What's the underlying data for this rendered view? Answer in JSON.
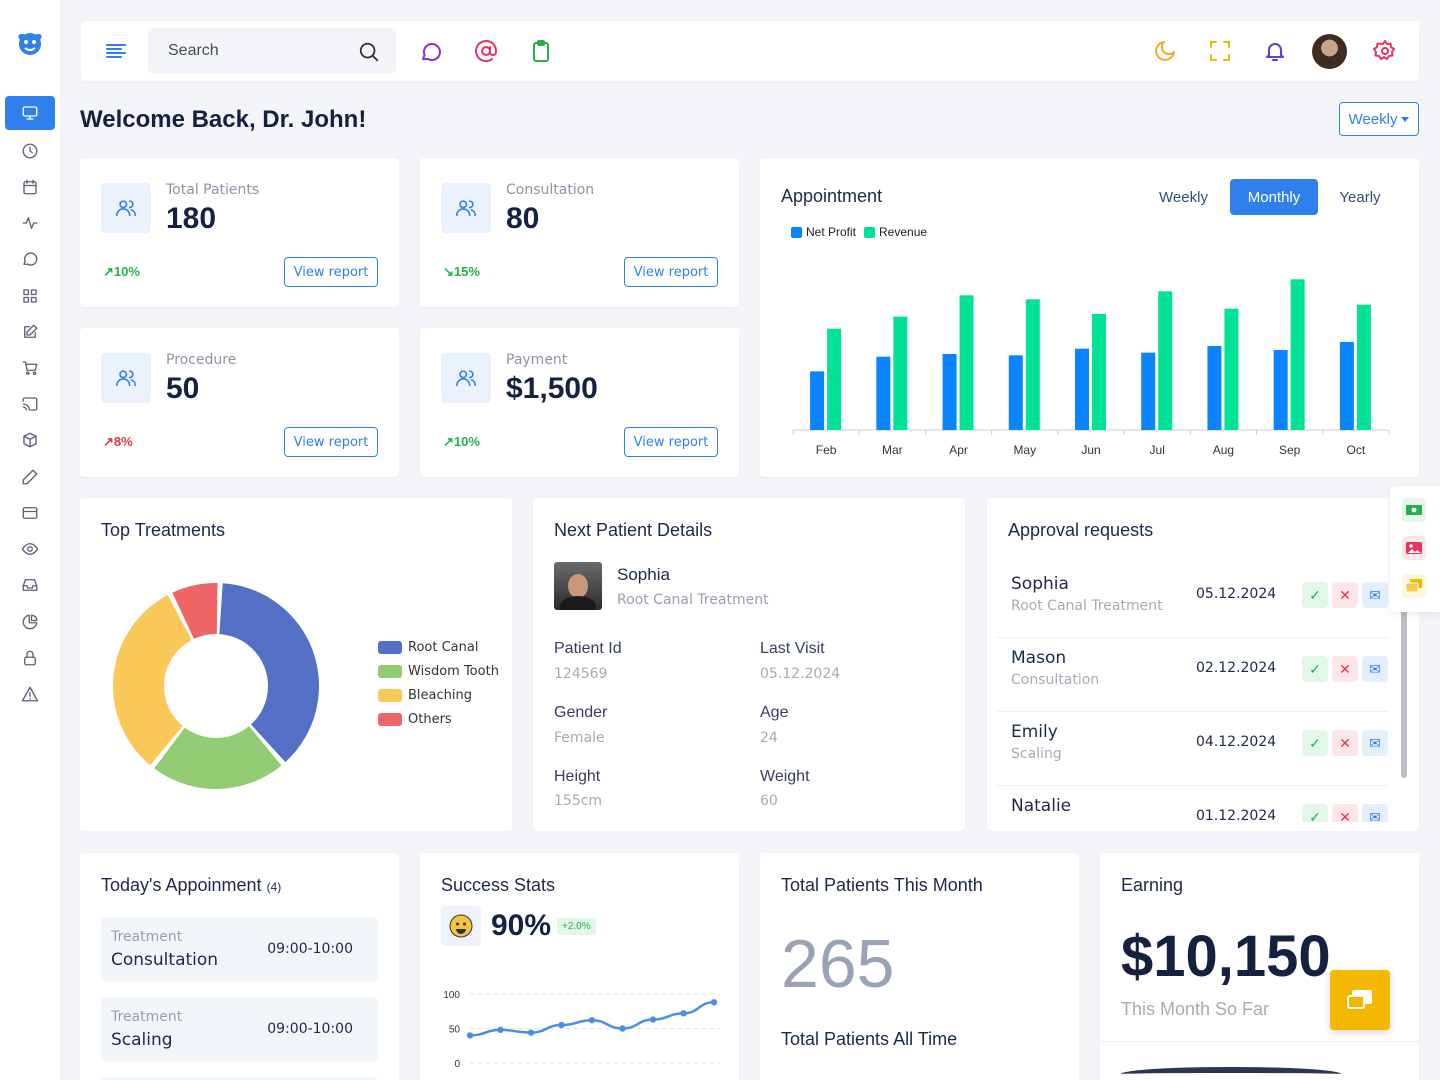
{
  "header": {
    "search_placeholder": "Search"
  },
  "welcome": "Welcome Back, Dr. John!",
  "period_dropdown": "Weekly",
  "stats": [
    {
      "label": "Total Patients",
      "value": "180",
      "trend": "10%",
      "trend_dir": "up",
      "trend_color": "#22b14c",
      "button": "View report"
    },
    {
      "label": "Consultation",
      "value": "80",
      "trend": "15%",
      "trend_dir": "down",
      "trend_color": "#22b14c",
      "button": "View report"
    },
    {
      "label": "Procedure",
      "value": "50",
      "trend": "8%",
      "trend_dir": "up",
      "trend_color": "#e8334a",
      "button": "View report"
    },
    {
      "label": "Payment",
      "value": "$1,500",
      "trend": "10%",
      "trend_dir": "up",
      "trend_color": "#22b14c",
      "button": "View report"
    }
  ],
  "appointment": {
    "title": "Appointment",
    "tabs": [
      "Weekly",
      "Monthly",
      "Yearly"
    ],
    "active_tab": "Monthly"
  },
  "chart_data": [
    {
      "type": "bar",
      "categories": [
        "Feb",
        "Mar",
        "Apr",
        "May",
        "Jun",
        "Jul",
        "Aug",
        "Sep",
        "Oct"
      ],
      "series": [
        {
          "name": "Net Profit",
          "color": "#0a84ff",
          "values": [
            44,
            55,
            57,
            56,
            61,
            58,
            63,
            60,
            66
          ]
        },
        {
          "name": "Revenue",
          "color": "#00e396",
          "values": [
            76,
            85,
            101,
            98,
            87,
            104,
            91,
            113,
            94
          ]
        }
      ],
      "ylim": [
        0,
        120
      ]
    },
    {
      "type": "pie",
      "title": "Top Treatments",
      "labels": [
        "Root Canal",
        "Wisdom Tooth",
        "Bleaching",
        "Others"
      ],
      "values": [
        38,
        22,
        32,
        8
      ],
      "colors": [
        "#5470c6",
        "#91cc75",
        "#fac858",
        "#ee6666"
      ]
    },
    {
      "type": "line",
      "y_ticks": [
        "100",
        "50",
        "0"
      ],
      "values": [
        40,
        48,
        44,
        55,
        62,
        50,
        63,
        72,
        88
      ],
      "ylim": [
        0,
        100
      ],
      "color": "#4a90e2"
    }
  ],
  "top_treatments": {
    "title": "Top Treatments",
    "legend": [
      "Root Canal",
      "Wisdom Tooth",
      "Bleaching",
      "Others"
    ]
  },
  "next_patient": {
    "title": "Next Patient Details",
    "name": "Sophia",
    "treatment": "Root Canal Treatment",
    "fields": [
      {
        "label": "Patient Id",
        "value": "124569"
      },
      {
        "label": "Last Visit",
        "value": "05.12.2024"
      },
      {
        "label": "Gender",
        "value": "Female"
      },
      {
        "label": "Age",
        "value": "24"
      },
      {
        "label": "Height",
        "value": "155cm"
      },
      {
        "label": "Weight",
        "value": "60"
      }
    ]
  },
  "approvals": {
    "title": "Approval requests",
    "rows": [
      {
        "name": "Sophia",
        "treatment": "Root Canal Treatment",
        "date": "05.12.2024"
      },
      {
        "name": "Mason",
        "treatment": "Consultation",
        "date": "02.12.2024"
      },
      {
        "name": "Emily",
        "treatment": "Scaling",
        "date": "04.12.2024"
      },
      {
        "name": "Natalie",
        "treatment": "",
        "date": "01.12.2024"
      }
    ]
  },
  "todays_appointments": {
    "title": "Today's Appoinment",
    "count": "(4)",
    "rows": [
      {
        "label": "Treatment",
        "name": "Consultation",
        "time": "09:00-10:00"
      },
      {
        "label": "Treatment",
        "name": "Scaling",
        "time": "09:00-10:00"
      }
    ]
  },
  "success": {
    "title": "Success Stats",
    "value": "90%",
    "delta": "+2.0%"
  },
  "patients_month": {
    "title": "Total Patients This Month",
    "value": "265",
    "footer": "Total Patients All Time"
  },
  "earning": {
    "title": "Earning",
    "value": "$10,150",
    "sub": "This Month So Far"
  }
}
